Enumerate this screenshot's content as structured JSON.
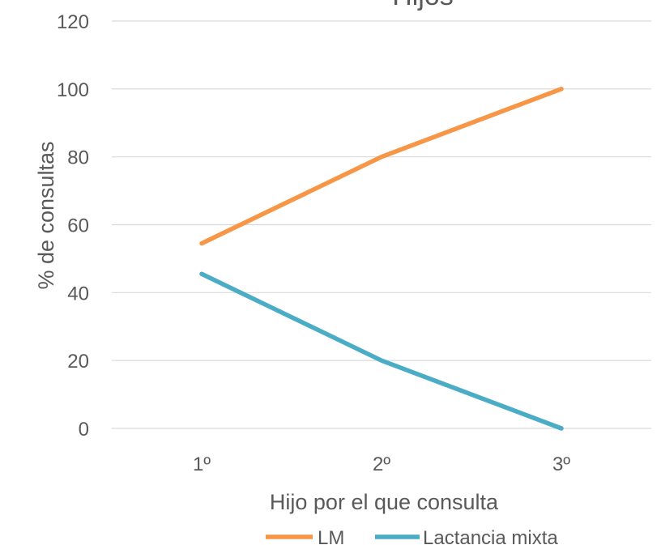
{
  "chart_data": {
    "type": "line",
    "title": "Hijos",
    "xlabel": "Hijo por el que consulta",
    "ylabel": "% de consultas",
    "categories": [
      "1º",
      "2º",
      "3º"
    ],
    "ylim": [
      0,
      120
    ],
    "yticks": [
      0,
      20,
      40,
      60,
      80,
      100,
      120
    ],
    "grid": true,
    "legend_position": "bottom",
    "series": [
      {
        "name": "LM",
        "values": [
          54.5,
          80,
          100
        ],
        "color": "#F79646"
      },
      {
        "name": "Lactancia mixta",
        "values": [
          45.5,
          20,
          0
        ],
        "color": "#4BACC6"
      }
    ]
  }
}
